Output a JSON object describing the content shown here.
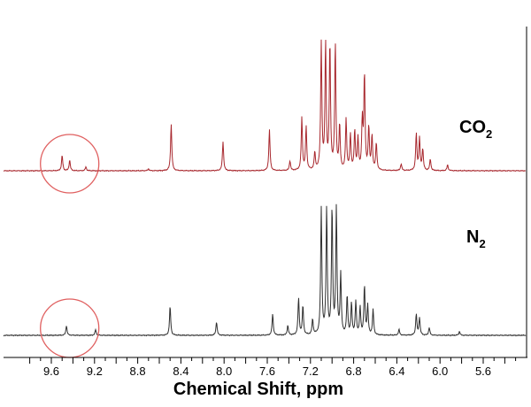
{
  "chart_data": {
    "type": "line",
    "title": "",
    "xlabel": "Chemical Shift, ppm",
    "ylabel": "",
    "x_reversed": true,
    "xlim": [
      10.0,
      5.2
    ],
    "x_ticks": [
      "9.6",
      "9.2",
      "8.8",
      "8.4",
      "8.0",
      "7.6",
      "7.2",
      "6.8",
      "6.4",
      "6.0",
      "5.6"
    ],
    "grid": false,
    "legend": "none",
    "highlight_color": "#e06060",
    "highlight_region_ppm": [
      9.72,
      9.14
    ],
    "series": [
      {
        "name": "CO2",
        "label_main": "CO",
        "label_sub": "2",
        "color": "#a8282e",
        "peaks": [
          {
            "ppm": 9.5,
            "height": 0.16
          },
          {
            "ppm": 9.43,
            "height": 0.11
          },
          {
            "ppm": 9.28,
            "height": 0.04
          },
          {
            "ppm": 8.7,
            "height": 0.02
          },
          {
            "ppm": 8.49,
            "height": 0.48
          },
          {
            "ppm": 8.01,
            "height": 0.3
          },
          {
            "ppm": 7.58,
            "height": 0.42
          },
          {
            "ppm": 7.39,
            "height": 0.1
          },
          {
            "ppm": 7.28,
            "height": 0.54
          },
          {
            "ppm": 7.24,
            "height": 0.45
          },
          {
            "ppm": 7.16,
            "height": 0.18
          },
          {
            "ppm": 7.1,
            "height": 1.3
          },
          {
            "ppm": 7.06,
            "height": 1.3
          },
          {
            "ppm": 7.02,
            "height": 1.3
          },
          {
            "ppm": 6.97,
            "height": 1.3
          },
          {
            "ppm": 6.93,
            "height": 0.46
          },
          {
            "ppm": 6.87,
            "height": 0.52
          },
          {
            "ppm": 6.83,
            "height": 0.36
          },
          {
            "ppm": 6.79,
            "height": 0.4
          },
          {
            "ppm": 6.76,
            "height": 0.32
          },
          {
            "ppm": 6.72,
            "height": 0.5
          },
          {
            "ppm": 6.7,
            "height": 0.98
          },
          {
            "ppm": 6.66,
            "height": 0.44
          },
          {
            "ppm": 6.63,
            "height": 0.35
          },
          {
            "ppm": 6.59,
            "height": 0.28
          },
          {
            "ppm": 6.36,
            "height": 0.07
          },
          {
            "ppm": 6.22,
            "height": 0.38
          },
          {
            "ppm": 6.19,
            "height": 0.33
          },
          {
            "ppm": 6.16,
            "height": 0.22
          },
          {
            "ppm": 6.09,
            "height": 0.12
          },
          {
            "ppm": 5.93,
            "height": 0.06
          }
        ]
      },
      {
        "name": "N2",
        "label_main": "N",
        "label_sub": "2",
        "color": "#303030",
        "peaks": [
          {
            "ppm": 9.46,
            "height": 0.1
          },
          {
            "ppm": 9.19,
            "height": 0.06
          },
          {
            "ppm": 8.5,
            "height": 0.3
          },
          {
            "ppm": 8.07,
            "height": 0.14
          },
          {
            "ppm": 7.55,
            "height": 0.22
          },
          {
            "ppm": 7.41,
            "height": 0.1
          },
          {
            "ppm": 7.31,
            "height": 0.38
          },
          {
            "ppm": 7.27,
            "height": 0.3
          },
          {
            "ppm": 7.18,
            "height": 0.16
          },
          {
            "ppm": 7.1,
            "height": 1.3
          },
          {
            "ppm": 7.05,
            "height": 1.3
          },
          {
            "ppm": 7.0,
            "height": 1.3
          },
          {
            "ppm": 6.96,
            "height": 1.3
          },
          {
            "ppm": 6.92,
            "height": 0.62
          },
          {
            "ppm": 6.86,
            "height": 0.4
          },
          {
            "ppm": 6.82,
            "height": 0.32
          },
          {
            "ppm": 6.78,
            "height": 0.34
          },
          {
            "ppm": 6.74,
            "height": 0.28
          },
          {
            "ppm": 6.7,
            "height": 0.5
          },
          {
            "ppm": 6.67,
            "height": 0.3
          },
          {
            "ppm": 6.62,
            "height": 0.26
          },
          {
            "ppm": 6.38,
            "height": 0.06
          },
          {
            "ppm": 6.22,
            "height": 0.22
          },
          {
            "ppm": 6.19,
            "height": 0.18
          },
          {
            "ppm": 6.1,
            "height": 0.08
          },
          {
            "ppm": 5.82,
            "height": 0.04
          }
        ]
      }
    ]
  }
}
